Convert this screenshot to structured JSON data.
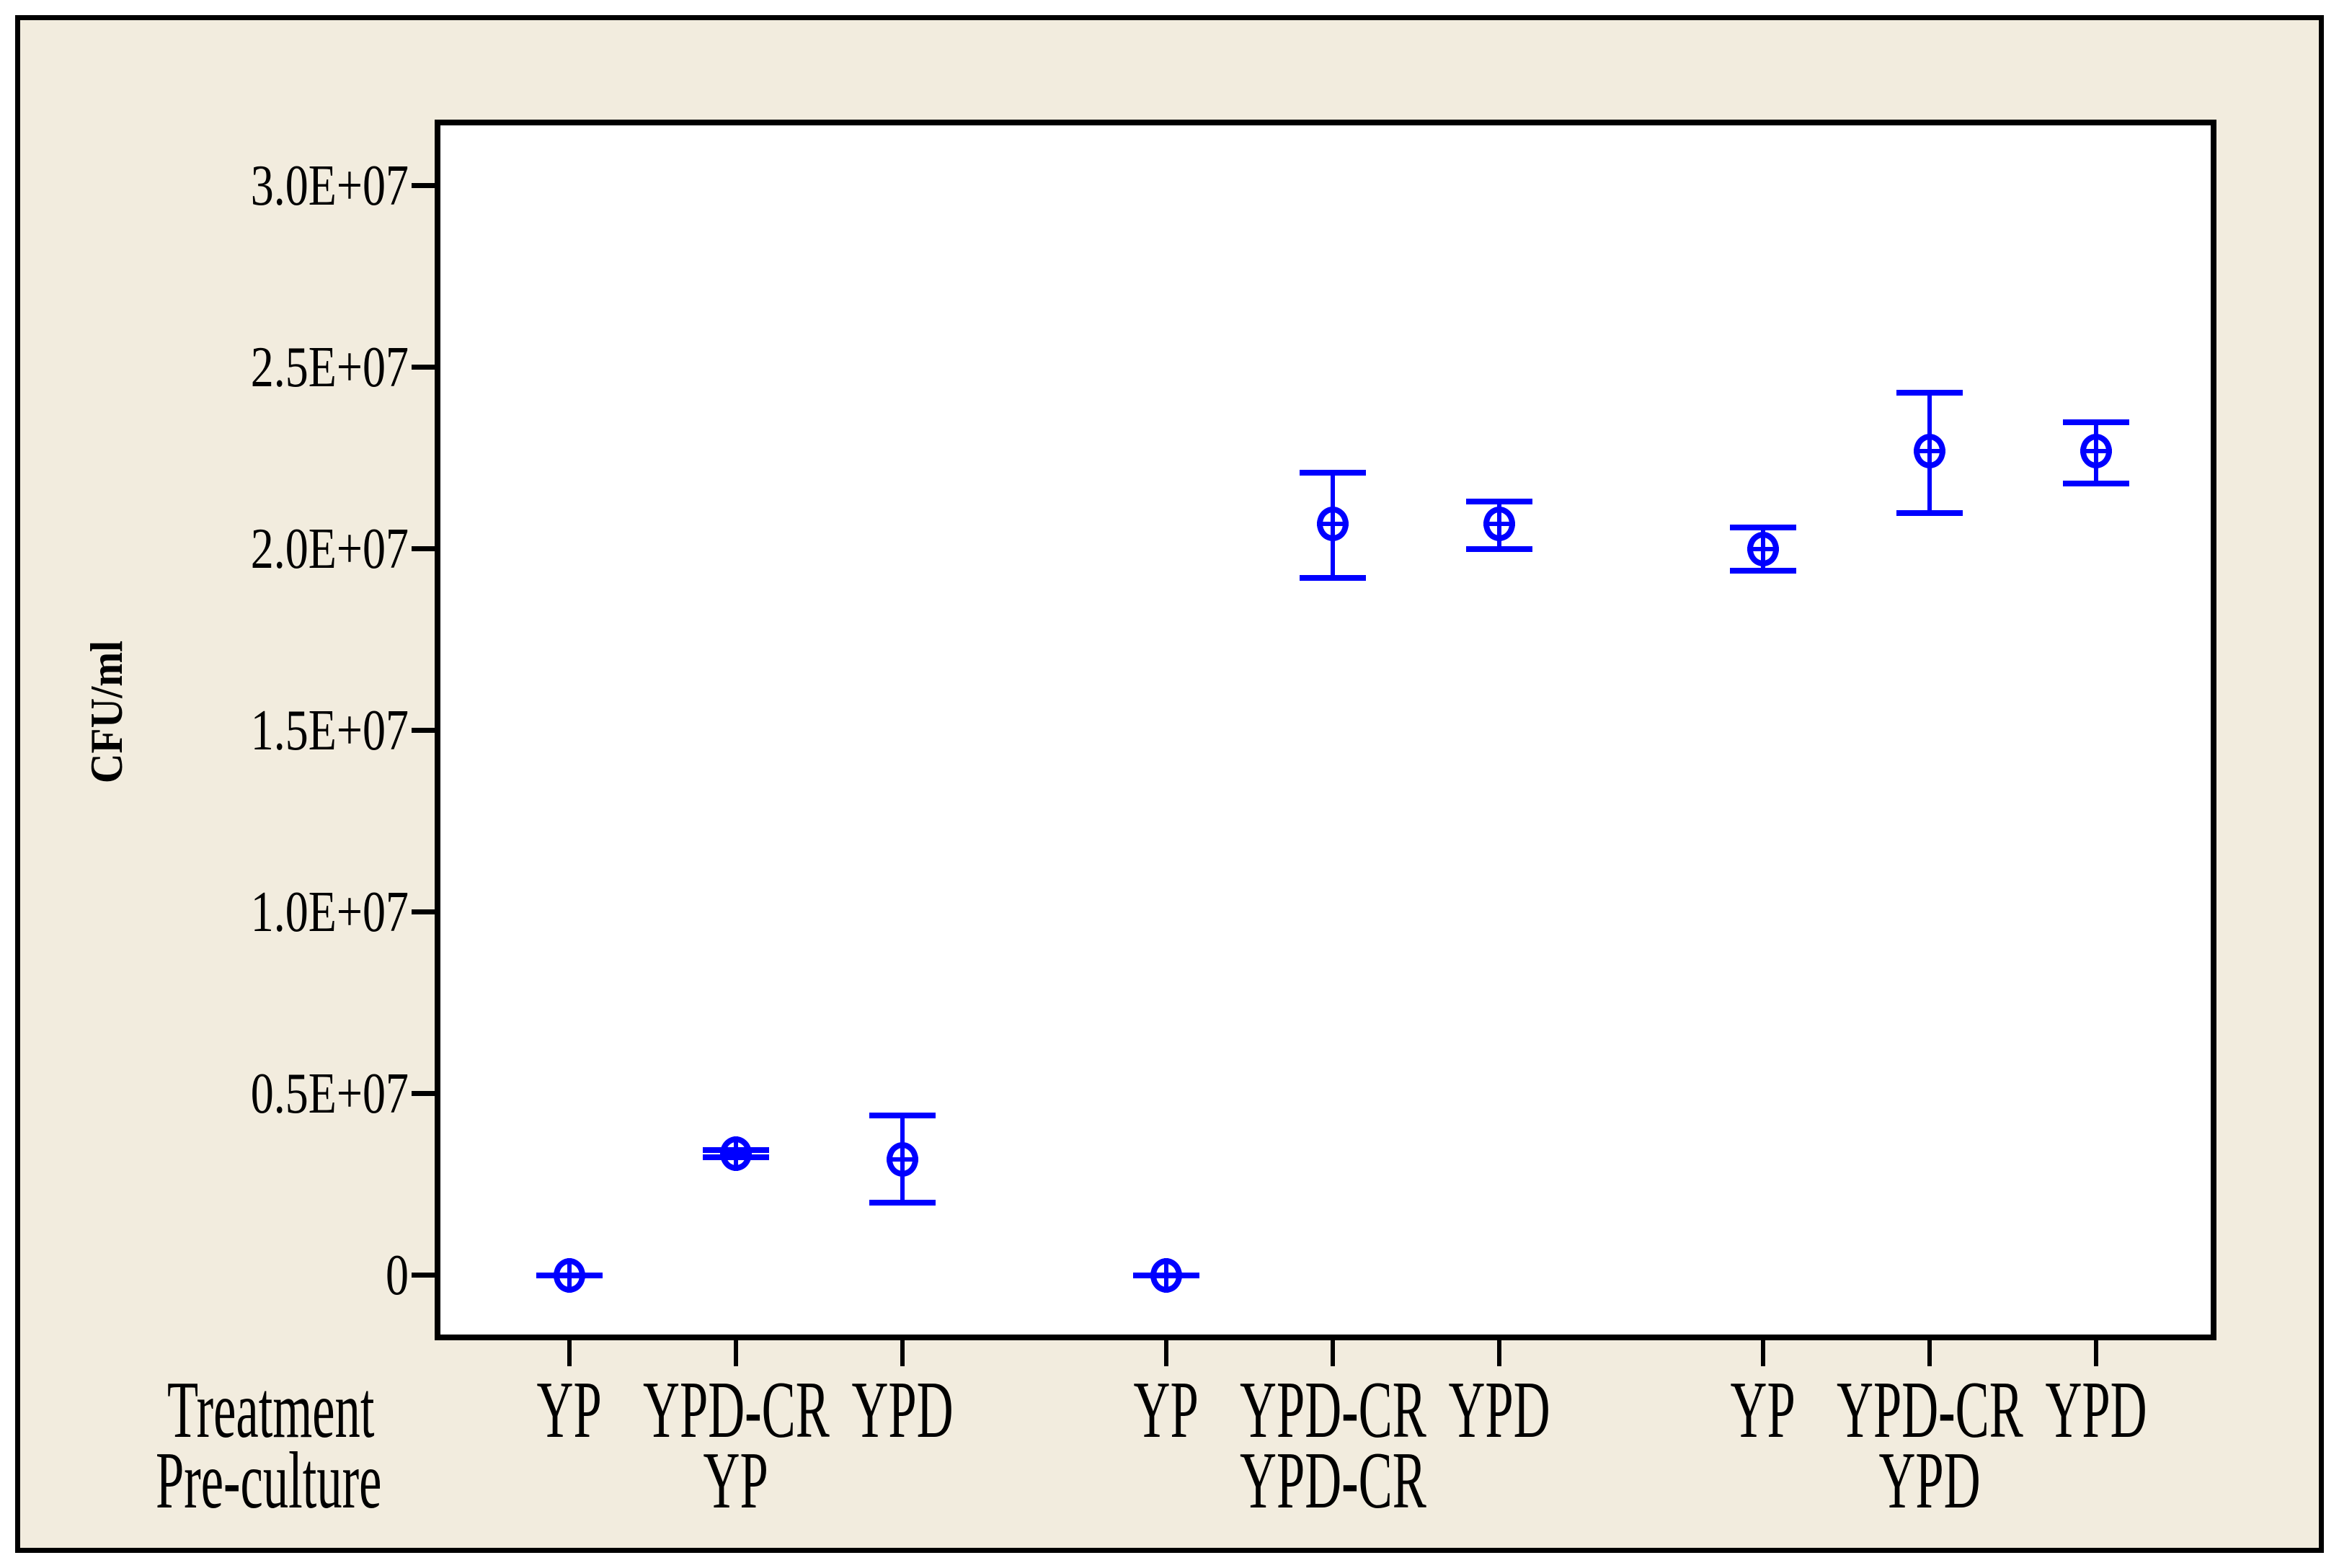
{
  "figure": {
    "outer_background": "#FFFFFF",
    "panel_fill": "#F2ECDE",
    "plot_fill": "#FFFFFF",
    "border_color": "#000000"
  },
  "chart_data": {
    "type": "scatter",
    "subtype": "interval-plot-mean-with-ci-error-bars",
    "title": "",
    "ylabel": "CFU/ml",
    "xlabel_rows": [
      "Treatment",
      "Pre-culture"
    ],
    "grid": false,
    "legend": "none",
    "marker": {
      "shape": "circle-plus-crosshair",
      "color": "#0000FF"
    },
    "y_axis": {
      "min": -1650000,
      "max": 31600000,
      "tick_step": 5000000,
      "tick_labels": [
        "0",
        "0.5E+07",
        "1.0E+07",
        "1.5E+07",
        "2.0E+07",
        "2.5E+07",
        "3.0E+07"
      ]
    },
    "groups": [
      {
        "pre_culture": "YP",
        "points": [
          {
            "treatment": "YP",
            "mean": 0,
            "ci_low": 0,
            "ci_high": 0
          },
          {
            "treatment": "YPD-CR",
            "mean": 3350000,
            "ci_low": 3250000,
            "ci_high": 3450000
          },
          {
            "treatment": "YPD",
            "mean": 3200000,
            "ci_low": 2000000,
            "ci_high": 4400000
          }
        ]
      },
      {
        "pre_culture": "YPD-CR",
        "points": [
          {
            "treatment": "YP",
            "mean": 0,
            "ci_low": 0,
            "ci_high": 0
          },
          {
            "treatment": "YPD-CR",
            "mean": 20700000,
            "ci_low": 19200000,
            "ci_high": 22100000
          },
          {
            "treatment": "YPD",
            "mean": 20700000,
            "ci_low": 20000000,
            "ci_high": 21300000
          }
        ]
      },
      {
        "pre_culture": "YPD",
        "points": [
          {
            "treatment": "YP",
            "mean": 20000000,
            "ci_low": 19400000,
            "ci_high": 20600000
          },
          {
            "treatment": "YPD-CR",
            "mean": 22700000,
            "ci_low": 21000000,
            "ci_high": 24300000
          },
          {
            "treatment": "YPD",
            "mean": 22700000,
            "ci_low": 21800000,
            "ci_high": 23500000
          }
        ]
      }
    ]
  }
}
